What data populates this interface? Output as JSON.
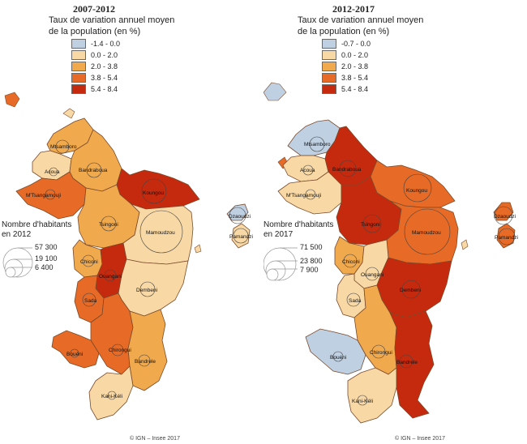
{
  "colors": {
    "c1": "#bfd0e3",
    "c2": "#f8d8a5",
    "c3": "#f1a94e",
    "c4": "#e76b26",
    "c5": "#c62a0e",
    "border": "#7a4a2a"
  },
  "panels": [
    {
      "title": "2007-2012",
      "legend_title_line1": "Taux de variation annuel moyen",
      "legend_title_line2": "de la population (en %)",
      "legend": [
        {
          "label": "-1.4 - 0.0",
          "color": "#bfd0e3"
        },
        {
          "label": "0.0 - 2.0",
          "color": "#f8d8a5"
        },
        {
          "label": "2.0 - 3.8",
          "color": "#f1a94e"
        },
        {
          "label": "3.8 - 5.4",
          "color": "#e76b26"
        },
        {
          "label": "5.4 - 8.4",
          "color": "#c62a0e"
        }
      ],
      "circle_title_line1": "Nombre d'habitants",
      "circle_title_line2": "en 2012",
      "circle_values": [
        "57 300",
        "19 100",
        "6 400"
      ],
      "copyright": "© IGN – Insee 2017",
      "communes": {
        "mtsamboro": {
          "label": "Mtsamboro",
          "color": "#f1a94e"
        },
        "acoua": {
          "label": "Acoua",
          "color": "#f8d8a5"
        },
        "bandraboua": {
          "label": "Bandraboua",
          "color": "#f1a94e"
        },
        "mtsangamouji": {
          "label": "M'Tsangamouji",
          "color": "#e76b26"
        },
        "koungou": {
          "label": "Koungou",
          "color": "#c62a0e"
        },
        "tsingoni": {
          "label": "Tsingoni",
          "color": "#f1a94e"
        },
        "mamoudzou": {
          "label": "Mamoudzou",
          "color": "#f8d8a5"
        },
        "chiconi": {
          "label": "Chiconi",
          "color": "#f1a94e"
        },
        "ouangani": {
          "label": "Ouangani",
          "color": "#c62a0e"
        },
        "dembeni": {
          "label": "Dembeni",
          "color": "#f8d8a5"
        },
        "sada": {
          "label": "Sada",
          "color": "#e76b26"
        },
        "chirongui": {
          "label": "Chirongui",
          "color": "#e76b26"
        },
        "bouéni": {
          "label": "Bouéni",
          "color": "#e76b26"
        },
        "bandrele": {
          "label": "Bandrele",
          "color": "#f1a94e"
        },
        "kaniKeli": {
          "label": "Kani-Kéli",
          "color": "#f8d8a5"
        },
        "dzaoudzi": {
          "label": "Dzaoudzi",
          "color": "#bfd0e3"
        },
        "pamandzi": {
          "label": "Pamandzi",
          "color": "#f8d8a5"
        }
      }
    },
    {
      "title": "2012-2017",
      "legend_title_line1": "Taux de variation annuel moyen",
      "legend_title_line2": "de la population (en %)",
      "legend": [
        {
          "label": "-0.7 - 0.0",
          "color": "#bfd0e3"
        },
        {
          "label": "0.0 - 2.0",
          "color": "#f8d8a5"
        },
        {
          "label": "2.0 - 3.8",
          "color": "#f1a94e"
        },
        {
          "label": "3.8 - 5.4",
          "color": "#e76b26"
        },
        {
          "label": "5.4 - 8.4",
          "color": "#c62a0e"
        }
      ],
      "circle_title_line1": "Nombre d'habitants",
      "circle_title_line2": "en 2017",
      "circle_values": [
        "71 500",
        "23 800",
        "7 900"
      ],
      "copyright": "© IGN – Insee 2017",
      "communes": {
        "mtsamboro": {
          "label": "Mtsamboro",
          "color": "#bfd0e3"
        },
        "acoua": {
          "label": "Acoua",
          "color": "#f8d8a5"
        },
        "bandraboua": {
          "label": "Bandraboua",
          "color": "#c62a0e"
        },
        "mtsangamouji": {
          "label": "M'Tsangamouji",
          "color": "#f8d8a5"
        },
        "koungou": {
          "label": "Koungou",
          "color": "#e76b26"
        },
        "tsingoni": {
          "label": "Tsingoni",
          "color": "#c62a0e"
        },
        "mamoudzou": {
          "label": "Mamoudzou",
          "color": "#e76b26"
        },
        "chiconi": {
          "label": "Chiconi",
          "color": "#f1a94e"
        },
        "ouangani": {
          "label": "Ouangani",
          "color": "#f8d8a5"
        },
        "dembeni": {
          "label": "Dembeni",
          "color": "#c62a0e"
        },
        "sada": {
          "label": "Sada",
          "color": "#f8d8a5"
        },
        "chirongui": {
          "label": "Chirongui",
          "color": "#f1a94e"
        },
        "bouéni": {
          "label": "Bouéni",
          "color": "#bfd0e3"
        },
        "bandrele": {
          "label": "Bandrele",
          "color": "#c62a0e"
        },
        "kaniKeli": {
          "label": "Kani-Kéli",
          "color": "#f8d8a5"
        },
        "dzaoudzi": {
          "label": "Dzaoudzi",
          "color": "#e76b26"
        },
        "pamandzi": {
          "label": "Pamandzi",
          "color": "#e76b26"
        }
      }
    }
  ]
}
